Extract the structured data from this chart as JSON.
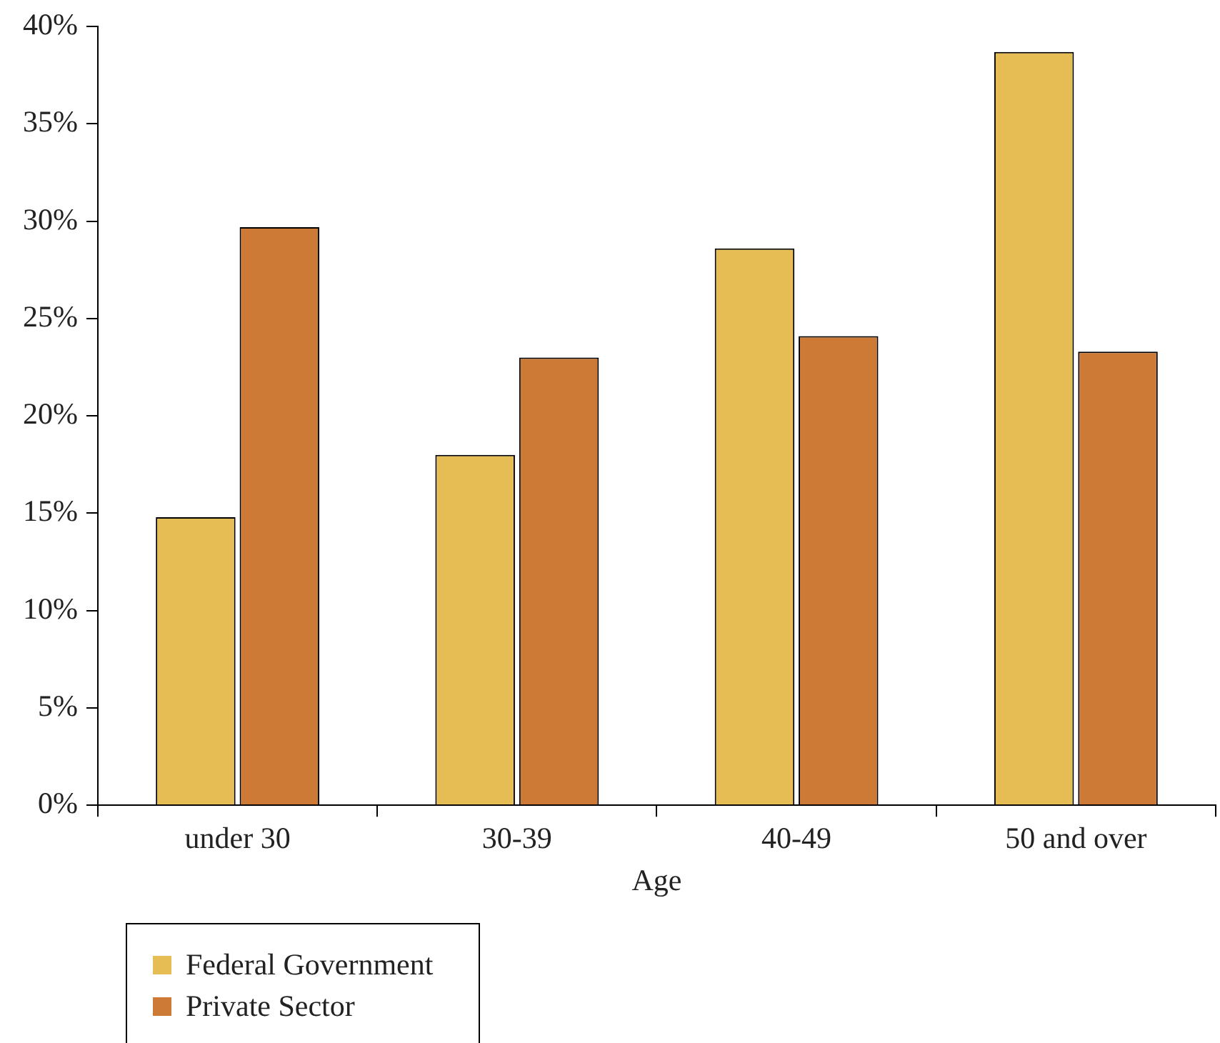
{
  "chart_data": {
    "type": "bar",
    "xlabel": "Age",
    "categories": [
      "under 30",
      "30-39",
      "40-49",
      "50 and over"
    ],
    "series": [
      {
        "name": "Federal Government",
        "color": "#e6bc55",
        "values": [
          14.8,
          18.0,
          28.6,
          38.7
        ]
      },
      {
        "name": "Private Sector",
        "color": "#cc7a35",
        "values": [
          29.7,
          23.0,
          24.1,
          23.3
        ]
      }
    ],
    "ylim": [
      0,
      40
    ],
    "yticks": [
      {
        "value": 0,
        "label": "0%"
      },
      {
        "value": 5,
        "label": "5%"
      },
      {
        "value": 10,
        "label": "10%"
      },
      {
        "value": 15,
        "label": "15%"
      },
      {
        "value": 20,
        "label": "20%"
      },
      {
        "value": 25,
        "label": "25%"
      },
      {
        "value": 30,
        "label": "30%"
      },
      {
        "value": 35,
        "label": "35%"
      },
      {
        "value": 40,
        "label": "40%"
      }
    ],
    "grid": false,
    "legend": "bottom left"
  }
}
